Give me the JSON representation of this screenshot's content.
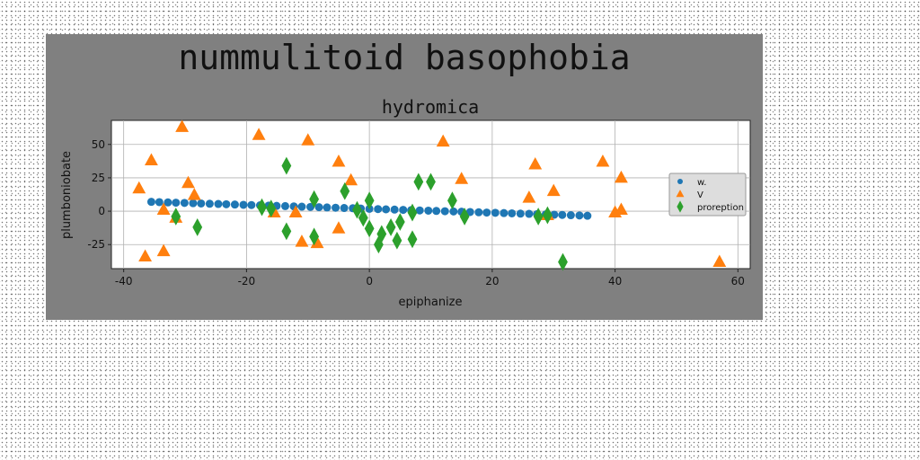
{
  "figure": {
    "suptitle": "nummulitoid basophobia"
  },
  "colors": {
    "figure_bg": "#808080",
    "axes_bg": "#ffffff",
    "grid": "#b0b0b0",
    "series_w": "#1f77b4",
    "series_v": "#ff7f0e",
    "series_proreption": "#2ca02c"
  },
  "chart_data": {
    "type": "scatter",
    "title": "hydromica",
    "xlabel": "epiphanize",
    "ylabel": "plumboniobate",
    "xlim": [
      -42,
      62
    ],
    "ylim": [
      -43,
      68
    ],
    "xticks": [
      -40,
      -20,
      0,
      20,
      40,
      60
    ],
    "yticks": [
      -25,
      0,
      25,
      50
    ],
    "grid": true,
    "legend_position": "center-right",
    "series": [
      {
        "name": "w.",
        "marker": "circle",
        "points": [
          [
            -35.5,
            7.0
          ],
          [
            -34.2,
            6.8
          ],
          [
            -32.8,
            6.6
          ],
          [
            -31.5,
            6.4
          ],
          [
            -30.1,
            6.2
          ],
          [
            -28.7,
            6.0
          ],
          [
            -27.4,
            5.8
          ],
          [
            -26.0,
            5.6
          ],
          [
            -24.6,
            5.4
          ],
          [
            -23.3,
            5.2
          ],
          [
            -21.9,
            5.0
          ],
          [
            -20.5,
            4.8
          ],
          [
            -19.2,
            4.6
          ],
          [
            -17.8,
            4.4
          ],
          [
            -16.4,
            4.2
          ],
          [
            -15.1,
            4.0
          ],
          [
            -13.7,
            3.8
          ],
          [
            -12.3,
            3.6
          ],
          [
            -11.0,
            3.4
          ],
          [
            -9.6,
            3.2
          ],
          [
            -8.2,
            3.0
          ],
          [
            -6.9,
            2.8
          ],
          [
            -5.5,
            2.6
          ],
          [
            -4.1,
            2.4
          ],
          [
            -2.7,
            2.2
          ],
          [
            -1.4,
            2.0
          ],
          [
            0.0,
            1.8
          ],
          [
            1.4,
            1.6
          ],
          [
            2.7,
            1.4
          ],
          [
            4.1,
            1.2
          ],
          [
            5.5,
            1.0
          ],
          [
            6.8,
            0.8
          ],
          [
            8.2,
            0.6
          ],
          [
            9.6,
            0.4
          ],
          [
            10.9,
            0.2
          ],
          [
            12.3,
            0.0
          ],
          [
            13.7,
            -0.2
          ],
          [
            15.0,
            -0.4
          ],
          [
            16.4,
            -0.6
          ],
          [
            17.8,
            -0.8
          ],
          [
            19.1,
            -1.0
          ],
          [
            20.5,
            -1.2
          ],
          [
            21.9,
            -1.4
          ],
          [
            23.2,
            -1.6
          ],
          [
            24.6,
            -1.8
          ],
          [
            26.0,
            -2.0
          ],
          [
            27.3,
            -2.2
          ],
          [
            28.7,
            -2.4
          ],
          [
            30.1,
            -2.6
          ],
          [
            31.4,
            -2.8
          ],
          [
            32.8,
            -3.0
          ],
          [
            34.2,
            -3.2
          ],
          [
            35.5,
            -3.4
          ]
        ]
      },
      {
        "name": "V",
        "marker": "triangle",
        "points": [
          [
            -37.5,
            17
          ],
          [
            -36.5,
            -34
          ],
          [
            -35.5,
            38
          ],
          [
            -33.5,
            1
          ],
          [
            -33.5,
            -30
          ],
          [
            -31.5,
            -5
          ],
          [
            -30.5,
            63
          ],
          [
            -29.5,
            21
          ],
          [
            -28.5,
            12
          ],
          [
            -18.0,
            57
          ],
          [
            -15.5,
            -1
          ],
          [
            -12.0,
            -1
          ],
          [
            -11.0,
            -23
          ],
          [
            -10.0,
            53
          ],
          [
            -8.5,
            -24
          ],
          [
            -5.0,
            37
          ],
          [
            -5.0,
            -13
          ],
          [
            -3.0,
            23
          ],
          [
            12.0,
            52
          ],
          [
            15.0,
            24
          ],
          [
            26.0,
            10
          ],
          [
            27.0,
            35
          ],
          [
            29.0,
            -3
          ],
          [
            30.0,
            15
          ],
          [
            38.0,
            37
          ],
          [
            40.0,
            -1
          ],
          [
            41.0,
            25
          ],
          [
            41.0,
            1
          ],
          [
            57.0,
            -38
          ]
        ]
      },
      {
        "name": "proreption",
        "marker": "diamond",
        "points": [
          [
            -31.5,
            -4
          ],
          [
            -28.0,
            -12
          ],
          [
            -17.5,
            3
          ],
          [
            -16.0,
            2
          ],
          [
            -13.5,
            34
          ],
          [
            -13.5,
            -15
          ],
          [
            -9.0,
            9
          ],
          [
            -9.0,
            -19
          ],
          [
            -4.0,
            15
          ],
          [
            -2.0,
            1
          ],
          [
            -1.0,
            -5
          ],
          [
            0.0,
            8
          ],
          [
            0.0,
            -13
          ],
          [
            1.5,
            -25
          ],
          [
            2.0,
            -17
          ],
          [
            3.5,
            -12
          ],
          [
            4.5,
            -22
          ],
          [
            5.0,
            -8
          ],
          [
            7.0,
            -1
          ],
          [
            7.0,
            -21
          ],
          [
            8.0,
            22
          ],
          [
            10.0,
            22
          ],
          [
            13.5,
            8
          ],
          [
            15.5,
            -4
          ],
          [
            27.5,
            -4
          ],
          [
            29.0,
            -3
          ],
          [
            31.5,
            -38
          ]
        ]
      }
    ]
  }
}
